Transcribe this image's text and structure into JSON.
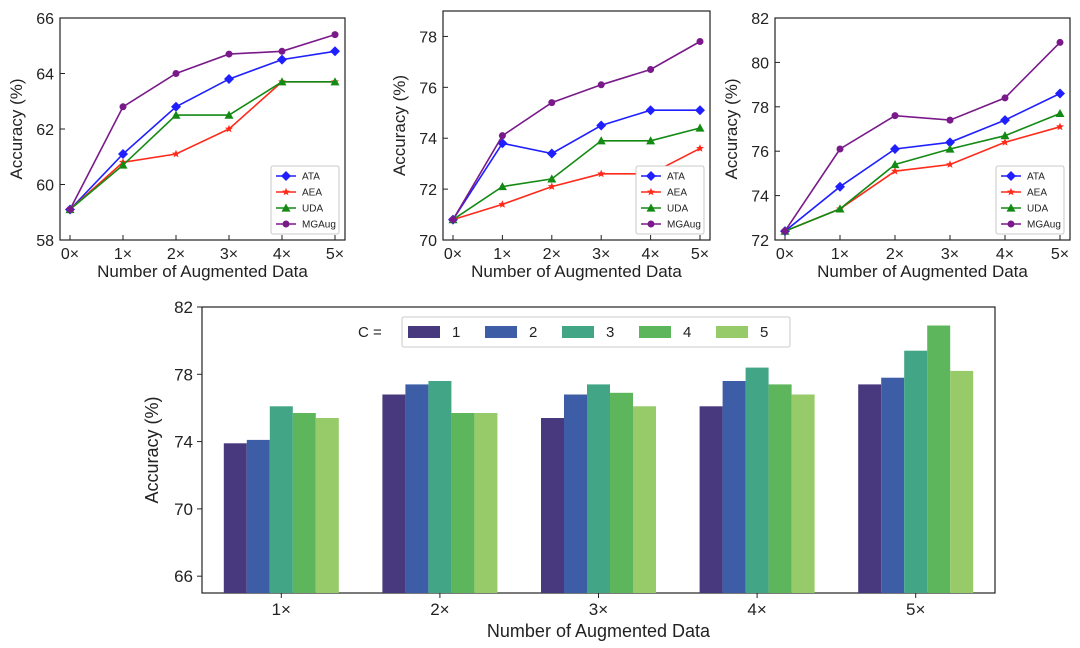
{
  "chart_data": [
    {
      "id": "line-a",
      "type": "line",
      "xlabel": "Number of Augmented Data",
      "ylabel": "Accuracy (%)",
      "categories": [
        "0×",
        "1×",
        "2×",
        "3×",
        "4×",
        "5×"
      ],
      "ylim": [
        58,
        66
      ],
      "yticks": [
        58,
        60,
        62,
        64,
        66
      ],
      "legend_position": "bottom-right",
      "series": [
        {
          "name": "ATA",
          "color": "#1f1fff",
          "marker": "diamond",
          "values": [
            59.1,
            61.1,
            62.8,
            63.8,
            64.5,
            64.8
          ]
        },
        {
          "name": "AEA",
          "color": "#ff2a1a",
          "marker": "star",
          "values": [
            59.1,
            60.8,
            61.1,
            62.0,
            63.7,
            63.7
          ]
        },
        {
          "name": "UDA",
          "color": "#138a13",
          "marker": "triangle",
          "values": [
            59.1,
            60.7,
            62.5,
            62.5,
            63.7,
            63.7
          ]
        },
        {
          "name": "MGAug",
          "color": "#7a1a8a",
          "marker": "circle",
          "values": [
            59.1,
            62.8,
            64.0,
            64.7,
            64.8,
            65.4
          ]
        }
      ]
    },
    {
      "id": "line-b",
      "type": "line",
      "xlabel": "Number of Augmented Data",
      "ylabel": "Accuracy (%)",
      "categories": [
        "0×",
        "1×",
        "2×",
        "3×",
        "4×",
        "5×"
      ],
      "ylim": [
        70,
        79
      ],
      "yticks": [
        70,
        72,
        74,
        76,
        78
      ],
      "legend_position": "bottom-right",
      "series": [
        {
          "name": "ATA",
          "color": "#1f1fff",
          "marker": "diamond",
          "values": [
            70.8,
            73.8,
            73.4,
            74.5,
            75.1,
            75.1
          ]
        },
        {
          "name": "AEA",
          "color": "#ff2a1a",
          "marker": "star",
          "values": [
            70.8,
            71.4,
            72.1,
            72.6,
            72.6,
            73.6
          ]
        },
        {
          "name": "UDA",
          "color": "#138a13",
          "marker": "triangle",
          "values": [
            70.8,
            72.1,
            72.4,
            73.9,
            73.9,
            74.4
          ]
        },
        {
          "name": "MGAug",
          "color": "#7a1a8a",
          "marker": "circle",
          "values": [
            70.8,
            74.1,
            75.4,
            76.1,
            76.7,
            77.8
          ]
        }
      ]
    },
    {
      "id": "line-c",
      "type": "line",
      "xlabel": "Number of Augmented Data",
      "ylabel": "Accuracy (%)",
      "categories": [
        "0×",
        "1×",
        "2×",
        "3×",
        "4×",
        "5×"
      ],
      "ylim": [
        72,
        82
      ],
      "yticks": [
        72,
        74,
        76,
        78,
        80,
        82
      ],
      "legend_position": "bottom-right",
      "series": [
        {
          "name": "ATA",
          "color": "#1f1fff",
          "marker": "diamond",
          "values": [
            72.4,
            74.4,
            76.1,
            76.4,
            77.4,
            78.6
          ]
        },
        {
          "name": "AEA",
          "color": "#ff2a1a",
          "marker": "star",
          "values": [
            72.4,
            73.4,
            75.1,
            75.4,
            76.4,
            77.1
          ]
        },
        {
          "name": "UDA",
          "color": "#138a13",
          "marker": "triangle",
          "values": [
            72.4,
            73.4,
            75.4,
            76.1,
            76.7,
            77.7
          ]
        },
        {
          "name": "MGAug",
          "color": "#7a1a8a",
          "marker": "circle",
          "values": [
            72.4,
            76.1,
            77.6,
            77.4,
            78.4,
            80.9
          ]
        }
      ]
    },
    {
      "id": "bar-c",
      "type": "bar",
      "xlabel": "Number of Augmented Data",
      "ylabel": "Accuracy (%)",
      "categories": [
        "1×",
        "2×",
        "3×",
        "4×",
        "5×"
      ],
      "ylim": [
        65,
        82
      ],
      "yticks": [
        66,
        70,
        74,
        78,
        82
      ],
      "legend_title": "C =",
      "legend_position": "top-center",
      "series": [
        {
          "name": "1",
          "color": "#48397e",
          "values": [
            73.9,
            76.8,
            75.4,
            76.1,
            77.4
          ]
        },
        {
          "name": "2",
          "color": "#3d5ea7",
          "values": [
            74.1,
            77.4,
            76.8,
            77.6,
            77.8
          ]
        },
        {
          "name": "3",
          "color": "#42a585",
          "values": [
            76.1,
            77.6,
            77.4,
            78.4,
            79.4
          ]
        },
        {
          "name": "4",
          "color": "#5db55c",
          "values": [
            75.7,
            75.7,
            76.9,
            77.4,
            80.9
          ]
        },
        {
          "name": "5",
          "color": "#97ca68",
          "values": [
            75.4,
            75.7,
            76.1,
            76.8,
            78.2
          ]
        }
      ]
    }
  ]
}
